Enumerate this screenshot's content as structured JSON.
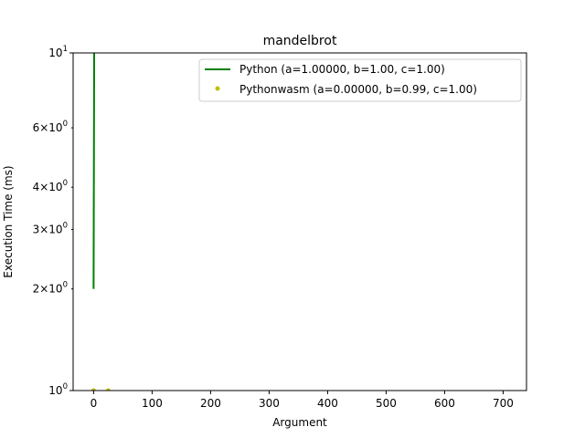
{
  "chart_data": {
    "type": "line",
    "title": "mandelbrot",
    "xlabel": "Argument",
    "ylabel": "Execution Time (ms)",
    "xlim": [
      -35,
      740
    ],
    "ylim": [
      1,
      10
    ],
    "yscale": "log",
    "grid": false,
    "legend_position": "top-right",
    "x_ticks": [
      0,
      100,
      200,
      300,
      400,
      500,
      600,
      700
    ],
    "x_tick_labels": [
      "0",
      "100",
      "200",
      "300",
      "400",
      "500",
      "600",
      "700"
    ],
    "y_ticks": [
      1,
      2,
      3,
      4,
      6,
      10
    ],
    "y_tick_labels": [
      {
        "base": "10",
        "exp": "0"
      },
      {
        "base": "2×10",
        "exp": "0"
      },
      {
        "base": "3×10",
        "exp": "0"
      },
      {
        "base": "4×10",
        "exp": "0"
      },
      {
        "base": "6×10",
        "exp": "0"
      },
      {
        "base": "10",
        "exp": "1"
      }
    ],
    "series": [
      {
        "name": "Python (a=1.00000, b=1.00, c=1.00)",
        "style": "line",
        "color": "#008000",
        "x": [
          0,
          1
        ],
        "y": [
          2,
          10.5
        ]
      },
      {
        "name": "Pythonwasm (a=0.00000, b=0.99, c=1.00)",
        "style": "points",
        "color": "#bfbf00",
        "x": [
          0,
          25
        ],
        "y": [
          1,
          1
        ]
      }
    ]
  }
}
